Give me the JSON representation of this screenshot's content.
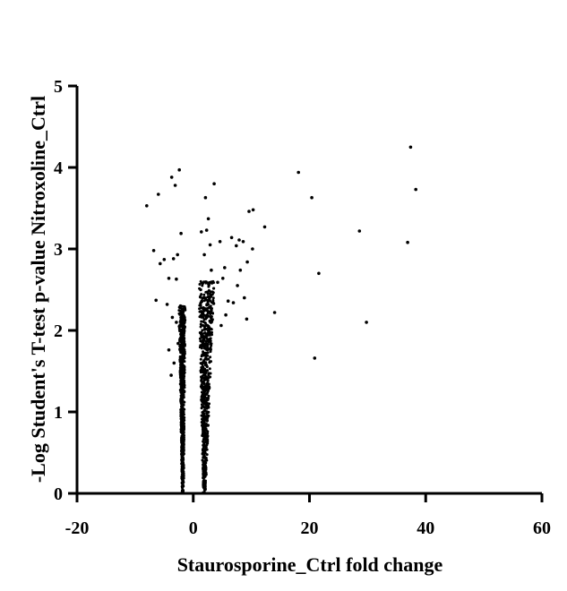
{
  "chart_data": {
    "type": "scatter",
    "title": "",
    "xlabel": "Staurosporine_Ctrl fold change",
    "ylabel": "-Log Student's T-test p-value Nitroxoline_Ctrl",
    "xlim": [
      -20,
      60
    ],
    "ylim": [
      0,
      5
    ],
    "xticks": [
      -20,
      0,
      20,
      40,
      60
    ],
    "yticks": [
      0,
      1,
      2,
      3,
      4,
      5
    ],
    "grid": false,
    "legend": "none",
    "point_color": "#000000",
    "points": [
      [
        37.4,
        4.25
      ],
      [
        38.3,
        3.73
      ],
      [
        18.1,
        3.94
      ],
      [
        20.4,
        3.63
      ],
      [
        28.6,
        3.22
      ],
      [
        36.9,
        3.08
      ],
      [
        21.6,
        2.7
      ],
      [
        29.8,
        2.1
      ],
      [
        20.9,
        1.66
      ],
      [
        14.0,
        2.22
      ],
      [
        12.3,
        3.27
      ],
      [
        10.3,
        3.48
      ],
      [
        9.6,
        3.46
      ],
      [
        10.2,
        3.0
      ],
      [
        9.3,
        2.84
      ],
      [
        8.6,
        3.09
      ],
      [
        7.9,
        3.11
      ],
      [
        7.4,
        3.04
      ],
      [
        6.6,
        3.14
      ],
      [
        8.1,
        2.74
      ],
      [
        8.8,
        2.4
      ],
      [
        9.2,
        2.14
      ],
      [
        7.6,
        2.55
      ],
      [
        6.9,
        2.34
      ],
      [
        3.6,
        3.8
      ],
      [
        2.1,
        3.63
      ],
      [
        2.6,
        3.37
      ],
      [
        2.3,
        3.23
      ],
      [
        1.4,
        3.21
      ],
      [
        4.6,
        3.09
      ],
      [
        5.4,
        2.77
      ],
      [
        5.1,
        2.64
      ],
      [
        4.2,
        2.59
      ],
      [
        3.5,
        2.33
      ],
      [
        6.0,
        2.36
      ],
      [
        5.6,
        2.19
      ],
      [
        4.8,
        2.06
      ],
      [
        2.9,
        3.05
      ],
      [
        3.1,
        2.74
      ],
      [
        1.9,
        2.93
      ],
      [
        -8.0,
        3.53
      ],
      [
        -6.0,
        3.67
      ],
      [
        -3.7,
        3.88
      ],
      [
        -3.1,
        3.78
      ],
      [
        -2.4,
        3.97
      ],
      [
        -6.8,
        2.98
      ],
      [
        -5.0,
        2.87
      ],
      [
        -5.7,
        2.82
      ],
      [
        -3.4,
        2.88
      ],
      [
        -2.7,
        2.93
      ],
      [
        -2.1,
        3.19
      ],
      [
        -4.2,
        2.64
      ],
      [
        -2.9,
        2.63
      ],
      [
        -6.4,
        2.37
      ],
      [
        -4.5,
        2.32
      ],
      [
        -3.6,
        2.16
      ],
      [
        -2.9,
        2.1
      ],
      [
        -4.2,
        1.76
      ],
      [
        -3.3,
        1.6
      ],
      [
        -2.2,
        2.3
      ],
      [
        -3.8,
        1.45
      ],
      [
        -1.9,
        1.92
      ],
      [
        -2.4,
        2.05
      ],
      [
        -2.6,
        1.84
      ],
      [
        -2.1,
        1.51
      ]
    ],
    "dense_clusters": [
      {
        "x_center": -1.8,
        "y_range": [
          0,
          2.3
        ]
      },
      {
        "x_center": 1.9,
        "y_range": [
          0,
          2.6
        ]
      }
    ]
  }
}
